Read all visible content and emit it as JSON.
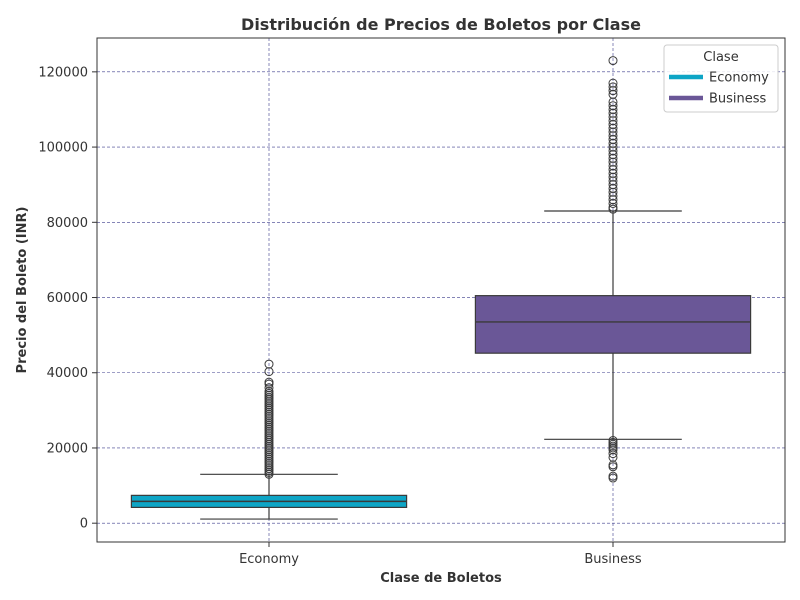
{
  "chart_data": {
    "type": "box",
    "title": "Distribución de Precios de Boletos por Clase",
    "xlabel": "Clase de Boletos",
    "ylabel": "Precio del Boleto (INR)",
    "ylim": [
      -5000,
      129000
    ],
    "yticks": [
      0,
      20000,
      40000,
      60000,
      80000,
      100000,
      120000
    ],
    "grid": true,
    "legend": {
      "title": "Clase",
      "position": "top-right",
      "entries": [
        {
          "name": "Economy",
          "color": "#0ea5c6"
        },
        {
          "name": "Business",
          "color": "#6a5797"
        }
      ]
    },
    "categories": [
      "Economy",
      "Business"
    ],
    "boxes": [
      {
        "name": "Economy",
        "color": "#0ea5c6",
        "whisker_low": 1100,
        "q1": 4200,
        "median": 5800,
        "q3": 7400,
        "whisker_high": 13000,
        "outliers": [
          13000,
          13500,
          14000,
          14500,
          15000,
          15500,
          16000,
          16500,
          17000,
          17500,
          18000,
          18500,
          19000,
          19500,
          20000,
          20500,
          21000,
          21500,
          22000,
          22500,
          23000,
          23500,
          24000,
          24500,
          25000,
          25500,
          26000,
          26500,
          27000,
          27500,
          28000,
          28500,
          29000,
          29500,
          30000,
          30500,
          31000,
          31500,
          32000,
          32500,
          33000,
          33500,
          34000,
          34500,
          35000,
          36000,
          37000,
          37500,
          40300,
          42300
        ]
      },
      {
        "name": "Business",
        "color": "#6a5797",
        "whisker_low": 22300,
        "q1": 45200,
        "median": 53500,
        "q3": 60500,
        "whisker_high": 83000,
        "outliers": [
          12000,
          12500,
          15000,
          15500,
          17500,
          18500,
          19500,
          20000,
          20500,
          21000,
          21500,
          22000,
          83500,
          84000,
          85000,
          86000,
          87000,
          88000,
          89000,
          90000,
          91000,
          92000,
          93000,
          94000,
          95000,
          96000,
          97000,
          98000,
          99000,
          100000,
          101000,
          102000,
          103000,
          104000,
          105000,
          106000,
          107000,
          108000,
          109000,
          110000,
          111000,
          112000,
          114000,
          115000,
          116000,
          117000,
          123000
        ]
      }
    ]
  }
}
